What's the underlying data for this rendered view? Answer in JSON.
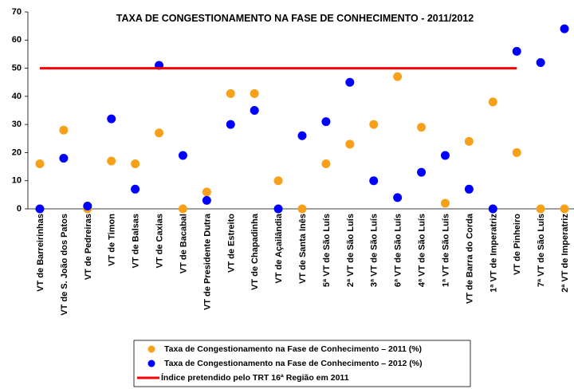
{
  "chart_data": {
    "type": "scatter",
    "title": "TAXA DE CONGESTIONAMENTO NA FASE DE CONHECIMENTO - 2011/2012",
    "categories": [
      "VT de Barreirinhas",
      "VT de S. João dos Patos",
      "VT de Pedreiras",
      "VT de Timon",
      "VT de Balsas",
      "VT de Caxias",
      "VT de Bacabal",
      "VT de Presidente Dutra",
      "VT de Estreito",
      "VT de Chapadinha",
      "VT de Açailândia",
      "VT de Santa Inês",
      "5ª VT de São Luís",
      "2ª VT de São Luís",
      "3ª VT de São Luís",
      "6ª VT de São Luís",
      "4ª VT de São Luís",
      "1ª VT de São Luís",
      "VT de Barra do Corda",
      "1ª VT de Imperatriz",
      "VT de Pinheiro",
      "7ª VT de São Luís",
      "2ª VT de Imperatriz"
    ],
    "series": [
      {
        "name": "Taxa de Congestionamento na Fase de Conhecimento – 2011 (%)",
        "color": "#f7a11a",
        "kind": "dot",
        "values": [
          16,
          28,
          0,
          17,
          16,
          27,
          0,
          6,
          41,
          41,
          10,
          0,
          16,
          23,
          30,
          47,
          29,
          2,
          24,
          38,
          20,
          0,
          0
        ]
      },
      {
        "name": "Taxa de Congestionamento na Fase de Conhecimento – 2012 (%)",
        "color": "#0000ff",
        "kind": "dot",
        "values": [
          0,
          18,
          1,
          32,
          7,
          51,
          19,
          3,
          30,
          35,
          0,
          26,
          31,
          45,
          10,
          4,
          13,
          19,
          7,
          0,
          56,
          52,
          64
        ]
      },
      {
        "name": "Índice pretendido pelo TRT 16ª Região em 2011",
        "color": "#ff0000",
        "kind": "line",
        "values": [
          50,
          50,
          50,
          50,
          50,
          50,
          50,
          50,
          50,
          50,
          50,
          50,
          50,
          50,
          50,
          50,
          50,
          50,
          50,
          50,
          50,
          null,
          null
        ]
      }
    ],
    "ylim": [
      0,
      70
    ],
    "yticks": [
      0,
      10,
      20,
      30,
      40,
      50,
      60,
      70
    ]
  }
}
